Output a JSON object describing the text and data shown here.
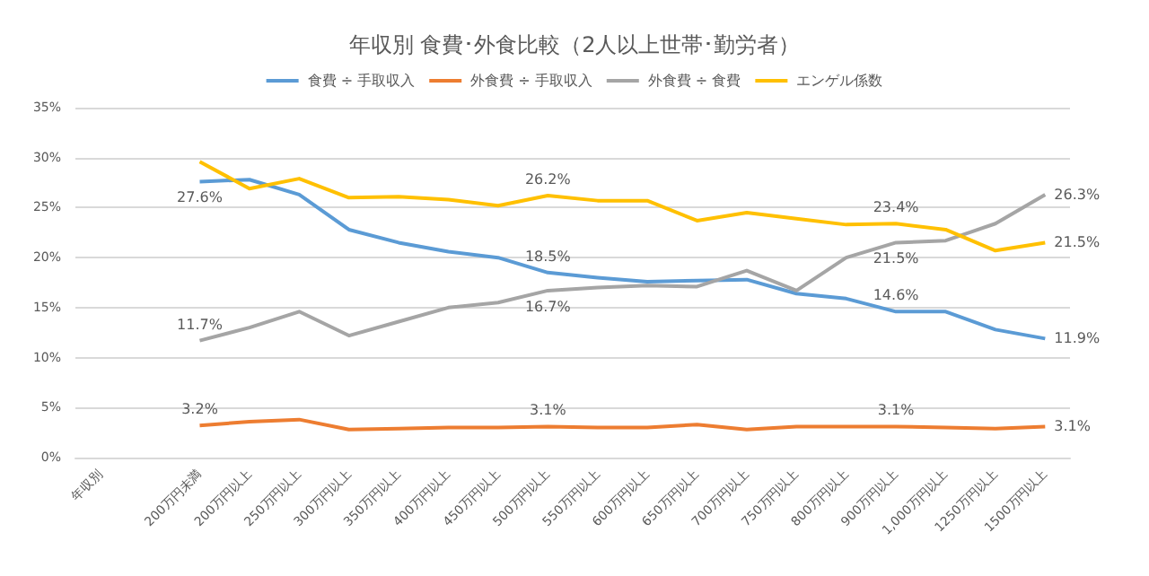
{
  "chart_data": {
    "type": "line",
    "title": "年収別 食費･外食比較（2人以上世帯･勤労者）",
    "categories": [
      "年収別",
      null,
      "200万円未満",
      "200万円以上",
      "250万円以上",
      "300万円以上",
      "350万円以上",
      "400万円以上",
      "450万円以上",
      "500万円以上",
      "550万円以上",
      "600万円以上",
      "650万円以上",
      "700万円以上",
      "750万円以上",
      "800万円以上",
      "900万円以上",
      "1,000万円以上",
      "1250万円以上",
      "1500万円以上"
    ],
    "series": [
      {
        "name": "食費 ÷ 手取収入",
        "color": "#5b9bd5",
        "values": [
          null,
          null,
          27.6,
          27.8,
          26.3,
          22.8,
          21.5,
          20.6,
          20.0,
          18.5,
          18.0,
          17.6,
          17.7,
          17.8,
          16.4,
          15.9,
          14.6,
          14.6,
          12.8,
          11.9
        ],
        "value_labels": [
          null,
          null,
          "27.6%",
          null,
          null,
          null,
          null,
          null,
          null,
          "18.5%",
          null,
          null,
          null,
          null,
          null,
          null,
          "14.6%",
          null,
          null,
          "11.9%"
        ]
      },
      {
        "name": "外食費 ÷ 手取収入",
        "color": "#ed7d31",
        "values": [
          null,
          null,
          3.2,
          3.6,
          3.8,
          2.8,
          2.9,
          3.0,
          3.0,
          3.1,
          3.0,
          3.0,
          3.3,
          2.8,
          3.1,
          3.1,
          3.1,
          3.0,
          2.9,
          3.1
        ],
        "value_labels": [
          null,
          null,
          "3.2%",
          null,
          null,
          null,
          null,
          null,
          null,
          "3.1%",
          null,
          null,
          null,
          null,
          null,
          null,
          "3.1%",
          null,
          null,
          "3.1%"
        ]
      },
      {
        "name": "外食費 ÷ 食費",
        "color": "#a5a5a5",
        "values": [
          null,
          null,
          11.7,
          13.0,
          14.6,
          12.2,
          13.6,
          15.0,
          15.5,
          16.7,
          17.0,
          17.2,
          17.1,
          18.7,
          16.7,
          20.0,
          21.5,
          21.7,
          23.4,
          26.3
        ],
        "value_labels": [
          null,
          null,
          "11.7%",
          null,
          null,
          null,
          null,
          null,
          null,
          "16.7%",
          null,
          null,
          null,
          null,
          null,
          null,
          "21.5%",
          null,
          null,
          "26.3%"
        ]
      },
      {
        "name": "エンゲル係数",
        "color": "#ffc000",
        "values": [
          null,
          null,
          29.6,
          26.9,
          27.9,
          26.0,
          26.1,
          25.8,
          25.2,
          26.2,
          25.7,
          25.7,
          23.7,
          24.5,
          23.9,
          23.3,
          23.4,
          22.8,
          20.7,
          21.5
        ],
        "value_labels": [
          null,
          null,
          null,
          null,
          null,
          null,
          null,
          null,
          null,
          "26.2%",
          null,
          null,
          null,
          null,
          null,
          null,
          "23.4%",
          null,
          null,
          "21.5%"
        ]
      }
    ],
    "ylim": [
      0,
      35
    ],
    "yticks": [
      {
        "value": 0,
        "label": "0%"
      },
      {
        "value": 5,
        "label": "5%"
      },
      {
        "value": 10,
        "label": "10%"
      },
      {
        "value": 15,
        "label": "15%"
      },
      {
        "value": 20,
        "label": "20%"
      },
      {
        "value": 25,
        "label": "25%"
      },
      {
        "value": 30,
        "label": "30%"
      },
      {
        "value": 35,
        "label": "35%"
      }
    ],
    "grid": "y",
    "legend": "top",
    "marker": "none",
    "line_style": "solid"
  }
}
